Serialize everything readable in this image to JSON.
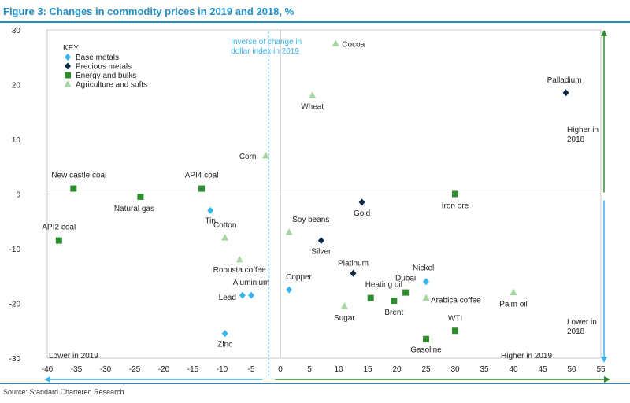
{
  "chart_data": {
    "type": "scatter",
    "title": "Figure 3: Changes in commodity prices in 2019 and 2018, %",
    "source": "Source: Standard Chartered Research",
    "xlim": [
      -40,
      55
    ],
    "ylim": [
      -30,
      30
    ],
    "x_ticks": [
      -40,
      -35,
      -30,
      -25,
      -20,
      -15,
      -10,
      -5,
      0,
      5,
      10,
      15,
      20,
      25,
      30,
      35,
      40,
      45,
      50,
      55
    ],
    "y_ticks": [
      30,
      20,
      10,
      0,
      -10,
      -20,
      -30
    ],
    "grid": false,
    "legend": {
      "title": "KEY",
      "position": "top-left",
      "items": [
        {
          "name": "Base metals",
          "color": "#3ab4ee",
          "shape": "diamond"
        },
        {
          "name": "Precious metals",
          "color": "#0b2a4a",
          "shape": "diamond"
        },
        {
          "name": "Energy and bulks",
          "color": "#2e8b2e",
          "shape": "square"
        },
        {
          "name": "Agriculture and softs",
          "color": "#a5d6a0",
          "shape": "triangle"
        }
      ]
    },
    "series": [
      {
        "name": "Base metals",
        "points": [
          {
            "label": "Tin",
            "x": -12,
            "y": -3
          },
          {
            "label": "Copper",
            "x": 1.5,
            "y": -17.5
          },
          {
            "label": "Nickel",
            "x": 25,
            "y": -16
          },
          {
            "label": "Lead",
            "x": -6.5,
            "y": -18.5
          },
          {
            "label": "Aluminium",
            "x": -5,
            "y": -18.5
          },
          {
            "label": "Zinc",
            "x": -9.5,
            "y": -25.5
          }
        ]
      },
      {
        "name": "Precious metals",
        "points": [
          {
            "label": "Palladium",
            "x": 49,
            "y": 18.5
          },
          {
            "label": "Gold",
            "x": 14,
            "y": -1.5
          },
          {
            "label": "Silver",
            "x": 7,
            "y": -8.5
          },
          {
            "label": "Platinum",
            "x": 12.5,
            "y": -14.5
          }
        ]
      },
      {
        "name": "Energy and bulks",
        "points": [
          {
            "label": "New castle coal",
            "x": -35.5,
            "y": 1
          },
          {
            "label": "API4 coal",
            "x": -13.5,
            "y": 1
          },
          {
            "label": "Natural gas",
            "x": -24,
            "y": -0.5
          },
          {
            "label": "API2 coal",
            "x": -38,
            "y": -8.5
          },
          {
            "label": "Iron ore",
            "x": 30,
            "y": 0
          },
          {
            "label": "Heating oil",
            "x": 15.5,
            "y": -19
          },
          {
            "label": "Brent",
            "x": 19.5,
            "y": -19.5
          },
          {
            "label": "Dubai",
            "x": 21.5,
            "y": -18
          },
          {
            "label": "WTI",
            "x": 30,
            "y": -25
          },
          {
            "label": "Gasoline",
            "x": 25,
            "y": -26.5
          }
        ]
      },
      {
        "name": "Agriculture and softs",
        "points": [
          {
            "label": "Cocoa",
            "x": 9.5,
            "y": 27.5
          },
          {
            "label": "Wheat",
            "x": 5.5,
            "y": 18
          },
          {
            "label": "Corn",
            "x": -2.5,
            "y": 7
          },
          {
            "label": "Cotton",
            "x": -9.5,
            "y": -8
          },
          {
            "label": "Soy beans",
            "x": 1.5,
            "y": -7
          },
          {
            "label": "Robusta coffee",
            "x": -7,
            "y": -12
          },
          {
            "label": "Sugar",
            "x": 11,
            "y": -20.5
          },
          {
            "label": "Arabica coffee",
            "x": 25,
            "y": -19
          },
          {
            "label": "Palm oil",
            "x": 40,
            "y": -18
          }
        ]
      }
    ],
    "reference_line": {
      "x": -2,
      "label_lines": [
        "Inverse of change in",
        "dollar index in 2019"
      ]
    },
    "annotations": {
      "higher_2018": [
        "Higher in",
        "2018"
      ],
      "lower_2018": [
        "Lower in",
        "2018"
      ],
      "lower_2019": "Lower in 2019",
      "higher_2019": "Higher in  2019"
    },
    "colors": {
      "title": "#1f8fc9",
      "ref_line": "#3ab4ee",
      "arrow_green": "#2e8b2e",
      "arrow_blue": "#3ab4ee"
    }
  }
}
